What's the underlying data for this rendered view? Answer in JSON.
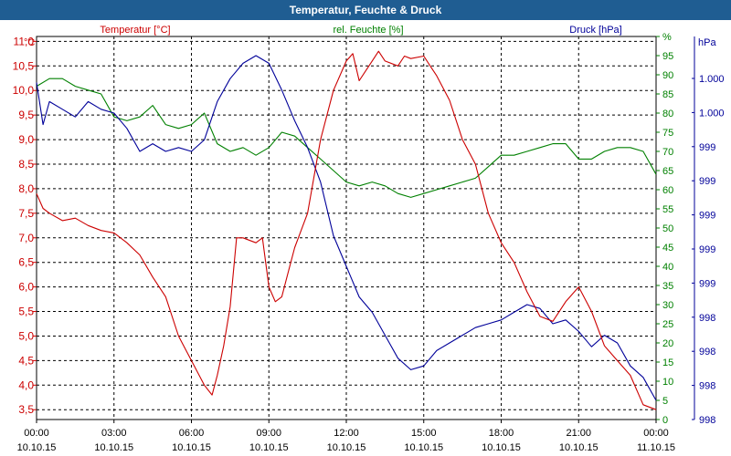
{
  "window": {
    "title": "Temperatur, Feuchte & Druck"
  },
  "chart_data": {
    "type": "line",
    "title": "Temperatur, Feuchte & Druck",
    "colors": {
      "temperature": "#cc0000",
      "humidity": "#008000",
      "pressure": "#000099",
      "grid": "#000000"
    },
    "axes": {
      "temperature": {
        "label": "Temperatur [°C]",
        "unit_label": "°C",
        "ylim": [
          3.3,
          11.1
        ],
        "ticks": [
          3.5,
          4.0,
          4.5,
          5.0,
          5.5,
          6.0,
          6.5,
          7.0,
          7.5,
          8.0,
          8.5,
          9.0,
          9.5,
          10.0,
          10.5,
          11.0
        ],
        "tick_labels": [
          "3,5",
          "4,0",
          "4,5",
          "5,0",
          "5,5",
          "6,0",
          "6,5",
          "7,0",
          "7,5",
          "8,0",
          "8,5",
          "9,0",
          "9,5",
          "10,0",
          "10,5",
          "11,0"
        ]
      },
      "humidity": {
        "label": "rel. Feuchte [%]",
        "unit_label": "%",
        "ylim": [
          0,
          100
        ],
        "ticks": [
          0,
          5,
          10,
          15,
          20,
          25,
          30,
          35,
          40,
          45,
          50,
          55,
          60,
          65,
          70,
          75,
          80,
          85,
          90,
          95,
          100
        ],
        "tick_labels": [
          "0",
          "5",
          "10",
          "15",
          "20",
          "25",
          "30",
          "35",
          "40",
          "45",
          "50",
          "55",
          "60",
          "65",
          "70",
          "75",
          "80",
          "85",
          "90",
          "95",
          "%"
        ]
      },
      "pressure": {
        "label": "Druck [hPa]",
        "unit_label": "hPa",
        "tick_labels": [
          "1.000",
          "1.000",
          "999",
          "999",
          "999",
          "999",
          "999",
          "998",
          "998",
          "998",
          "998"
        ]
      },
      "x": {
        "range_hours": [
          0,
          24
        ],
        "ticks": [
          0,
          3,
          6,
          9,
          12,
          15,
          18,
          21,
          24
        ],
        "tick_labels": [
          {
            "time": "00:00",
            "date": "10.10.15"
          },
          {
            "time": "03:00",
            "date": "10.10.15"
          },
          {
            "time": "06:00",
            "date": "10.10.15"
          },
          {
            "time": "09:00",
            "date": "10.10.15"
          },
          {
            "time": "12:00",
            "date": "10.10.15"
          },
          {
            "time": "15:00",
            "date": "10.10.15"
          },
          {
            "time": "18:00",
            "date": "10.10.15"
          },
          {
            "time": "21:00",
            "date": "10.10.15"
          },
          {
            "time": "00:00",
            "date": "11.10.15"
          }
        ]
      }
    },
    "series": [
      {
        "name": "Temperatur",
        "axis": "temperature",
        "x": [
          0,
          0.25,
          0.5,
          1,
          1.5,
          2,
          2.5,
          3,
          3.5,
          4,
          4.5,
          5,
          5.5,
          6,
          6.5,
          6.8,
          7,
          7.25,
          7.5,
          7.75,
          8,
          8.5,
          8.75,
          9,
          9.25,
          9.5,
          9.75,
          10,
          10.5,
          11,
          11.5,
          12,
          12.25,
          12.5,
          12.75,
          13,
          13.25,
          13.5,
          14,
          14.25,
          14.5,
          15,
          15.25,
          15.5,
          16,
          16.5,
          17,
          17.5,
          18,
          18.5,
          19,
          19.5,
          20,
          20.5,
          21,
          21.5,
          22,
          22.5,
          23,
          23.5,
          24
        ],
        "values": [
          7.9,
          7.6,
          7.5,
          7.35,
          7.4,
          7.25,
          7.15,
          7.1,
          6.9,
          6.65,
          6.2,
          5.8,
          5.0,
          4.5,
          4.0,
          3.8,
          4.2,
          4.8,
          5.6,
          7.0,
          7.0,
          6.9,
          7.0,
          6.0,
          5.7,
          5.8,
          6.3,
          6.8,
          7.5,
          9.0,
          10.0,
          10.6,
          10.75,
          10.2,
          10.4,
          10.6,
          10.8,
          10.6,
          10.5,
          10.7,
          10.65,
          10.7,
          10.5,
          10.3,
          9.8,
          9.0,
          8.5,
          7.5,
          6.9,
          6.5,
          5.9,
          5.4,
          5.3,
          5.7,
          6.0,
          5.5,
          4.8,
          4.5,
          4.2,
          3.6,
          3.5
        ]
      },
      {
        "name": "rel. Feuchte",
        "axis": "humidity",
        "x": [
          0,
          0.5,
          1,
          1.5,
          2,
          2.5,
          3,
          3.5,
          4,
          4.5,
          5,
          5.5,
          6,
          6.5,
          7,
          7.5,
          8,
          8.5,
          9,
          9.5,
          10,
          10.5,
          11,
          11.5,
          12,
          12.5,
          13,
          13.5,
          14,
          14.5,
          15,
          15.5,
          16,
          16.5,
          17,
          17.5,
          18,
          18.5,
          19,
          19.5,
          20,
          20.5,
          21,
          21.5,
          22,
          22.5,
          23,
          23.5,
          24
        ],
        "values": [
          87,
          89,
          89,
          87,
          86,
          85,
          79,
          78,
          79,
          82,
          77,
          76,
          77,
          80,
          72,
          70,
          71,
          69,
          71,
          75,
          74,
          71,
          68,
          65,
          62,
          61,
          62,
          61,
          59,
          58,
          59,
          60,
          61,
          62,
          63,
          66,
          69,
          69,
          70,
          71,
          72,
          72,
          68,
          68,
          70,
          71,
          71,
          70,
          64
        ]
      },
      {
        "name": "Druck",
        "axis": "pressure",
        "x": [
          0,
          0.25,
          0.5,
          1,
          1.5,
          2,
          2.5,
          3,
          3.5,
          4,
          4.5,
          5,
          5.5,
          6,
          6.5,
          7,
          7.5,
          8,
          8.5,
          9,
          9.5,
          10,
          10.5,
          11,
          11.5,
          12,
          12.5,
          13,
          13.5,
          14,
          14.5,
          15,
          15.5,
          16,
          16.5,
          17,
          17.5,
          18,
          18.5,
          19,
          19.5,
          20,
          20.5,
          21,
          21.5,
          22,
          22.5,
          23,
          23.5,
          24
        ],
        "values": [
          88,
          77,
          83,
          81,
          79,
          83,
          81,
          80,
          76,
          70,
          72,
          70,
          71,
          70,
          73,
          83,
          89,
          93,
          95,
          93,
          86,
          78,
          71,
          62,
          48,
          40,
          32,
          28,
          22,
          16,
          13,
          14,
          18,
          20,
          22,
          24,
          25,
          26,
          28,
          30,
          29,
          25,
          26,
          23,
          19,
          22,
          20,
          14,
          11,
          5
        ]
      }
    ]
  }
}
